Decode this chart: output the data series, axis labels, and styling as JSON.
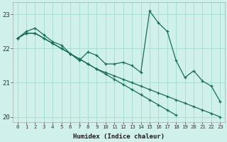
{
  "xlabel": "Humidex (Indice chaleur)",
  "ylabel": "",
  "bg_color": "#cff0eb",
  "grid_color": "#aaddd7",
  "line_color": "#1a6b5a",
  "xlim": [
    -0.5,
    23.5
  ],
  "ylim": [
    19.85,
    23.35
  ],
  "yticks": [
    20,
    21,
    22,
    23
  ],
  "xticks": [
    0,
    1,
    2,
    3,
    4,
    5,
    6,
    7,
    8,
    9,
    10,
    11,
    12,
    13,
    14,
    15,
    16,
    17,
    18,
    19,
    20,
    21,
    22,
    23
  ],
  "series1": [
    22.3,
    22.5,
    22.6,
    22.4,
    22.2,
    22.1,
    21.85,
    21.65,
    21.9,
    21.8,
    21.55,
    21.55,
    21.6,
    21.5,
    21.3,
    23.1,
    22.75,
    22.5,
    21.65,
    21.15,
    21.35,
    21.05,
    20.9,
    20.45
  ],
  "series2_x": [
    0,
    1,
    2,
    3,
    4,
    5,
    6,
    7,
    8,
    9,
    10,
    11,
    12,
    13,
    14,
    15,
    16,
    17,
    18
  ],
  "series2": [
    22.3,
    22.45,
    22.45,
    22.3,
    22.15,
    22.0,
    21.85,
    21.7,
    21.55,
    21.4,
    21.25,
    21.1,
    20.95,
    20.8,
    20.65,
    20.5,
    20.35,
    20.2,
    20.05
  ],
  "series3": [
    22.3,
    22.45,
    22.45,
    22.3,
    22.15,
    22.0,
    21.85,
    21.7,
    21.55,
    21.4,
    21.3,
    21.2,
    21.1,
    21.0,
    20.9,
    20.8,
    20.7,
    20.6,
    20.5,
    20.4,
    20.3,
    20.2,
    20.1,
    20.0
  ]
}
